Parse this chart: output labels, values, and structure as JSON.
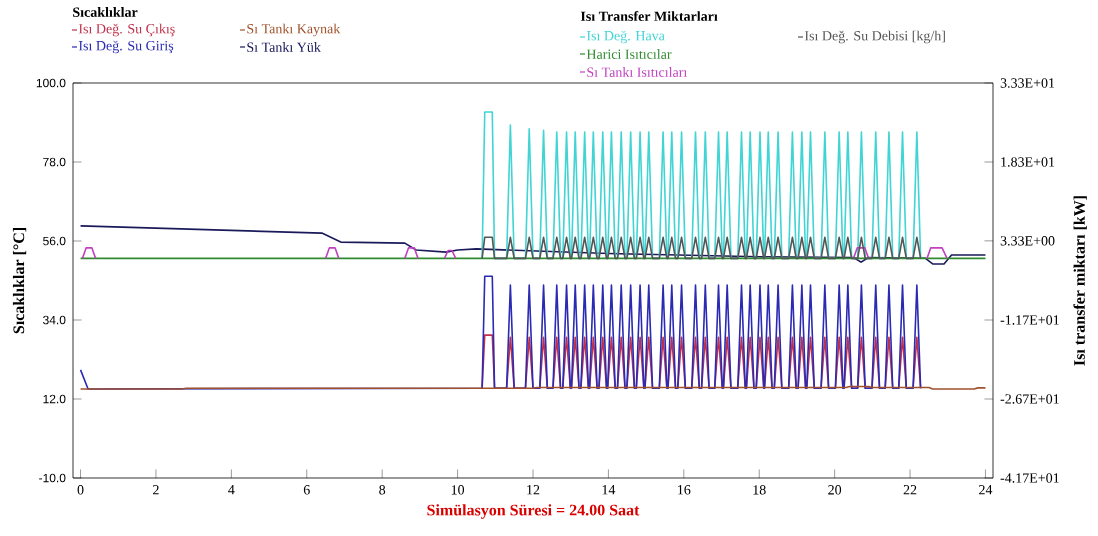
{
  "chart_data": {
    "type": "line",
    "annotations": [
      "Sıcaklıklar",
      "Isı Transfer Miktarları"
    ],
    "xlabel": "Simülasyon Süresi = 24.00 Saat",
    "ylabel": "Sıcaklıklar [°C]",
    "y2label": "Isı transfer miktarı [kW]",
    "xlim": [
      -0.2,
      24.2
    ],
    "xticks": [
      0,
      2,
      4,
      6,
      8,
      10,
      12,
      14,
      16,
      18,
      20,
      22,
      24
    ],
    "ylim": [
      -10,
      100
    ],
    "yticks": [
      {
        "value": -10,
        "label": "-10.0"
      },
      {
        "value": 12,
        "label": "12.0"
      },
      {
        "value": 34,
        "label": "34.0"
      },
      {
        "value": 56,
        "label": "56.0"
      },
      {
        "value": 78,
        "label": "78.0"
      },
      {
        "value": 100,
        "label": "100.0"
      }
    ],
    "y2lim": [
      -41.7,
      33.3
    ],
    "y2ticks": [
      {
        "value": -41.7,
        "label": "-4.17E+01"
      },
      {
        "value": -26.7,
        "label": "-2.67E+01"
      },
      {
        "value": -11.7,
        "label": "-1.17E+01"
      },
      {
        "value": 3.33,
        "label": "3.33E+00"
      },
      {
        "value": 18.3,
        "label": "1.83E+01"
      },
      {
        "value": 33.3,
        "label": "3.33E+01"
      }
    ],
    "legend": "top",
    "x": [
      10.65,
      10.72,
      10.92,
      10.98,
      11.3,
      11.4,
      11.5,
      11.8,
      11.9,
      12.0,
      12.18,
      12.28,
      12.38,
      12.53,
      12.63,
      12.73,
      12.79,
      12.89,
      12.99,
      13.02,
      13.12,
      13.22,
      13.27,
      13.37,
      13.47,
      13.5,
      13.6,
      13.7,
      13.75,
      13.85,
      13.95,
      13.98,
      14.08,
      14.18,
      14.24,
      14.34,
      14.44,
      14.49,
      14.59,
      14.69,
      14.74,
      14.84,
      14.94,
      14.97,
      15.07,
      15.17,
      15.35,
      15.45,
      15.55,
      15.58,
      15.68,
      15.78,
      15.84,
      15.94,
      16.04,
      16.21,
      16.31,
      16.41,
      16.47,
      16.57,
      16.67,
      16.82,
      16.92,
      17.02,
      17.05,
      17.15,
      17.25,
      17.43,
      17.53,
      17.63,
      17.66,
      17.76,
      17.86,
      17.92,
      18.02,
      18.12,
      18.14,
      18.24,
      18.34,
      18.4,
      18.5,
      18.6,
      18.78,
      18.88,
      18.98,
      19.03,
      19.13,
      19.23,
      19.26,
      19.36,
      19.46,
      19.64,
      19.74,
      19.84,
      20.02,
      20.12,
      20.22,
      20.25,
      20.35,
      20.45,
      20.61,
      20.71,
      20.81,
      20.99,
      21.09,
      21.19,
      21.34,
      21.44,
      21.54,
      21.7,
      21.8,
      21.9,
      22.08,
      22.18,
      22.28
    ],
    "series": [
      {
        "name": "Isı Değ. Su Çıkış",
        "color": "#c0304a",
        "values": [
          15,
          29.8,
          29.8,
          15,
          15,
          29.2,
          15,
          15,
          29.2,
          15,
          15,
          29.2,
          15,
          15,
          29.2,
          15,
          15,
          29.2,
          15,
          15,
          29.2,
          15,
          15,
          29.2,
          15,
          15,
          29.2,
          15,
          15,
          29.2,
          15,
          15,
          29.2,
          15,
          15,
          29.2,
          15,
          15,
          29.2,
          15,
          15,
          29.2,
          15,
          15,
          29.2,
          15,
          15,
          29.2,
          15,
          15,
          29.2,
          15,
          15,
          29.2,
          15,
          15,
          29.2,
          15,
          15,
          29.2,
          15,
          15,
          29.2,
          15,
          15,
          29.2,
          15,
          15,
          29.2,
          15,
          15,
          29.2,
          15,
          15,
          29.2,
          15,
          15,
          29.2,
          15,
          15,
          29.2,
          15,
          15,
          29.2,
          15,
          15,
          29.2,
          15,
          15,
          29.2,
          15,
          15,
          29.2,
          15,
          15,
          29.2,
          15,
          15,
          29.2,
          15,
          15,
          29.2,
          15,
          15,
          29.2,
          15,
          15,
          29.2,
          15,
          15,
          29.2,
          15,
          15,
          29.2,
          15
        ]
      },
      {
        "name": "Isı Değ. Su Giriş",
        "color": "#2a2ab4",
        "x": [
          0,
          0.2,
          10.65,
          10.72,
          10.92,
          10.98,
          11.3,
          11.4,
          11.5,
          11.8,
          11.9,
          12.0,
          12.18,
          12.28,
          12.38,
          12.53,
          12.63,
          12.73,
          12.79,
          12.89,
          12.99,
          13.02,
          13.12,
          13.22,
          13.27,
          13.37,
          13.47,
          13.5,
          13.6,
          13.7,
          13.75,
          13.85,
          13.95,
          13.98,
          14.08,
          14.18,
          14.24,
          14.34,
          14.44,
          14.49,
          14.59,
          14.69,
          14.74,
          14.84,
          14.94,
          14.97,
          15.07,
          15.17,
          15.35,
          15.45,
          15.55,
          15.58,
          15.68,
          15.78,
          15.84,
          15.94,
          16.04,
          16.21,
          16.31,
          16.41,
          16.47,
          16.57,
          16.67,
          16.82,
          16.92,
          17.02,
          17.05,
          17.15,
          17.25,
          17.43,
          17.53,
          17.63,
          17.66,
          17.76,
          17.86,
          17.92,
          18.02,
          18.12,
          18.14,
          18.24,
          18.34,
          18.4,
          18.5,
          18.6,
          18.78,
          18.88,
          18.98,
          19.03,
          19.13,
          19.23,
          19.26,
          19.36,
          19.46,
          19.64,
          19.74,
          19.84,
          20.02,
          20.12,
          20.22,
          20.25,
          20.35,
          20.45,
          20.61,
          20.71,
          20.81,
          20.99,
          21.09,
          21.19,
          21.34,
          21.44,
          21.54,
          21.7,
          21.8,
          21.9,
          22.08,
          22.18,
          22.28
        ],
        "values": [
          20.1,
          14.8,
          15,
          46.2,
          46.2,
          15,
          15,
          43.7,
          15,
          15,
          43.7,
          15,
          15,
          43.7,
          15,
          15,
          43.7,
          15,
          15,
          43.7,
          15,
          15,
          43.7,
          15,
          15,
          43.7,
          15,
          15,
          43.7,
          15,
          15,
          43.7,
          15,
          15,
          43.7,
          15,
          15,
          43.7,
          15,
          15,
          43.7,
          15,
          15,
          43.7,
          15,
          15,
          43.7,
          15,
          15,
          43.7,
          15,
          15,
          43.7,
          15,
          15,
          43.7,
          15,
          15,
          43.7,
          15,
          15,
          43.7,
          15,
          15,
          43.7,
          15,
          15,
          43.7,
          15,
          15,
          43.7,
          15,
          15,
          43.7,
          15,
          15,
          43.7,
          15,
          15,
          43.7,
          15,
          15,
          43.7,
          15,
          15,
          43.7,
          15,
          15,
          43.7,
          15,
          15,
          43.7,
          15,
          15,
          43.7,
          15,
          15,
          43.7,
          15,
          15,
          43.7,
          15,
          15,
          43.7,
          15,
          15,
          43.7,
          15,
          15,
          43.7,
          15,
          15,
          43.7,
          15,
          15,
          43.7,
          15
        ]
      },
      {
        "name": "Sı Tankı Kaynak",
        "color": "#a0522d",
        "x": [
          0,
          2.7,
          2.8,
          12,
          12.1,
          20.3,
          20.4,
          20.9,
          21,
          22.5,
          22.6,
          23.7,
          23.8,
          24
        ],
        "values": [
          14.8,
          14.8,
          15,
          15,
          15.2,
          15.2,
          15.5,
          15.5,
          15.2,
          15.2,
          14.8,
          14.8,
          15.1,
          15.1
        ]
      },
      {
        "name": "Sı Tankı Yük",
        "color": "#1a1a5a",
        "x": [
          0,
          6.4,
          6.9,
          8.6,
          8.9,
          9.7,
          10.0,
          10.5,
          14,
          18,
          20.5,
          20.7,
          20.9,
          22.4,
          22.6,
          22.9,
          23.1,
          24
        ],
        "values": [
          60.2,
          58.2,
          55.7,
          55.4,
          53.5,
          52.9,
          53.5,
          53.8,
          52.5,
          51.6,
          51.4,
          50.1,
          51.4,
          51.2,
          49.6,
          49.6,
          52.1,
          52.1
        ]
      },
      {
        "name": "Isı Değ. Hava",
        "color": "#40d4d4",
        "axis": "y2",
        "values": [
          0,
          27.8,
          27.8,
          0,
          0,
          25.3,
          0,
          0,
          24.6,
          0,
          0,
          24.3,
          0,
          0,
          24,
          0,
          0,
          24,
          0,
          0,
          24,
          0,
          0,
          24,
          0,
          0,
          24,
          0,
          0,
          24,
          0,
          0,
          24,
          0,
          0,
          24,
          0,
          0,
          24,
          0,
          0,
          24,
          0,
          0,
          24,
          0,
          0,
          24,
          0,
          0,
          24,
          0,
          0,
          24,
          0,
          0,
          24,
          0,
          0,
          24,
          0,
          0,
          24,
          0,
          0,
          24,
          0,
          0,
          24,
          0,
          0,
          24,
          0,
          0,
          24,
          0,
          0,
          24,
          0,
          0,
          24,
          0,
          0,
          24,
          0,
          0,
          24,
          0,
          0,
          24,
          0,
          0,
          24,
          0,
          0,
          24,
          0,
          0,
          24,
          0,
          0,
          24,
          0,
          0,
          24,
          0,
          0,
          24,
          0,
          0,
          24,
          0,
          0,
          24,
          0
        ]
      },
      {
        "name": "Harici Isıtıcılar",
        "color": "#2e8b2e",
        "axis": "y2",
        "x": [
          0,
          24
        ],
        "values": [
          0,
          0
        ]
      },
      {
        "name": "Sı Tankı Isıtıcıları",
        "color": "#c040c0",
        "axis": "y2",
        "x": [
          0.05,
          0.15,
          0.3,
          0.4,
          0.45,
          6.5,
          6.6,
          6.75,
          6.85,
          6.9,
          8.6,
          8.7,
          8.85,
          8.95,
          9.0,
          9.65,
          9.75,
          9.85,
          9.95,
          10,
          20.5,
          20.6,
          20.8,
          20.9,
          21,
          22.45,
          22.55,
          22.85,
          22.98
        ],
        "values": [
          0,
          2,
          2,
          0,
          null,
          0,
          2,
          2,
          0,
          null,
          0,
          2,
          2,
          0,
          null,
          0,
          1.5,
          1.5,
          0,
          null,
          0,
          2,
          2,
          0,
          null,
          0,
          2,
          2,
          0
        ]
      },
      {
        "name": "Isı Değ. Su Debisi [kg/h]",
        "color": "#555555",
        "axis": "y2",
        "values": [
          0,
          4,
          4,
          0,
          0,
          4,
          0,
          0,
          4,
          0,
          0,
          4,
          0,
          0,
          4,
          0,
          0,
          4,
          0,
          0,
          4,
          0,
          0,
          4,
          0,
          0,
          4,
          0,
          0,
          4,
          0,
          0,
          4,
          0,
          0,
          4,
          0,
          0,
          4,
          0,
          0,
          4,
          0,
          0,
          4,
          0,
          0,
          4,
          0,
          0,
          4,
          0,
          0,
          4,
          0,
          0,
          4,
          0,
          0,
          4,
          0,
          0,
          4,
          0,
          0,
          4,
          0,
          0,
          4,
          0,
          0,
          4,
          0,
          0,
          4,
          0,
          0,
          4,
          0,
          0,
          4,
          0,
          0,
          4,
          0,
          0,
          4,
          0,
          0,
          4,
          0,
          0,
          4,
          0,
          0,
          4,
          0,
          0,
          4,
          0,
          0,
          4,
          0,
          0,
          4,
          0,
          0,
          4,
          0,
          0,
          4,
          0,
          0,
          4,
          0
        ]
      }
    ]
  }
}
